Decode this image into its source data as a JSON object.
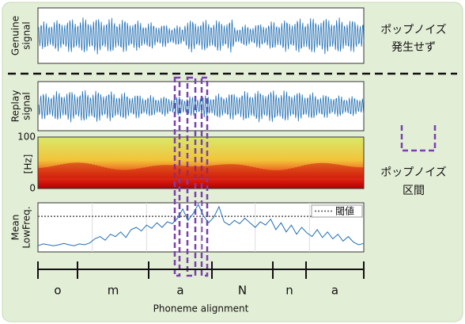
{
  "genuine": {
    "ylabel": [
      "Genuine",
      "signal"
    ],
    "note": [
      "ポップノイズ",
      "発生せず"
    ]
  },
  "replay": {
    "ylabel": [
      "Replay",
      "signal"
    ]
  },
  "spectrogram": {
    "ylabel": "[Hz]",
    "ylim": [
      0,
      100
    ],
    "yticks": [
      0,
      100
    ]
  },
  "mean_low_freq": {
    "type": "line",
    "ylabel": [
      "Mean",
      "LowFreq."
    ],
    "legend": "閾値",
    "threshold": 0.74,
    "ylim": [
      0,
      1
    ],
    "color": "#1f6fb4",
    "values": [
      0.1,
      0.14,
      0.12,
      0.1,
      0.12,
      0.15,
      0.12,
      0.1,
      0.14,
      0.12,
      0.16,
      0.25,
      0.3,
      0.22,
      0.35,
      0.3,
      0.4,
      0.28,
      0.45,
      0.5,
      0.42,
      0.55,
      0.48,
      0.6,
      0.5,
      0.62,
      0.58,
      0.7,
      0.9,
      0.65,
      0.8,
      1.0,
      0.75,
      0.6,
      0.72,
      0.95,
      0.62,
      0.55,
      0.65,
      0.58,
      0.7,
      0.6,
      0.5,
      0.62,
      0.55,
      0.68,
      0.45,
      0.6,
      0.4,
      0.55,
      0.35,
      0.5,
      0.38,
      0.3,
      0.45,
      0.28,
      0.4,
      0.25,
      0.35,
      0.2,
      0.3,
      0.18,
      0.12,
      0.15
    ]
  },
  "legend_box": {
    "label": [
      "ポップノイズ",
      "区間"
    ]
  },
  "phonemes": [
    "o",
    "m",
    "a",
    "N",
    "n",
    "a"
  ],
  "xlabel": "Phoneme alignment"
}
